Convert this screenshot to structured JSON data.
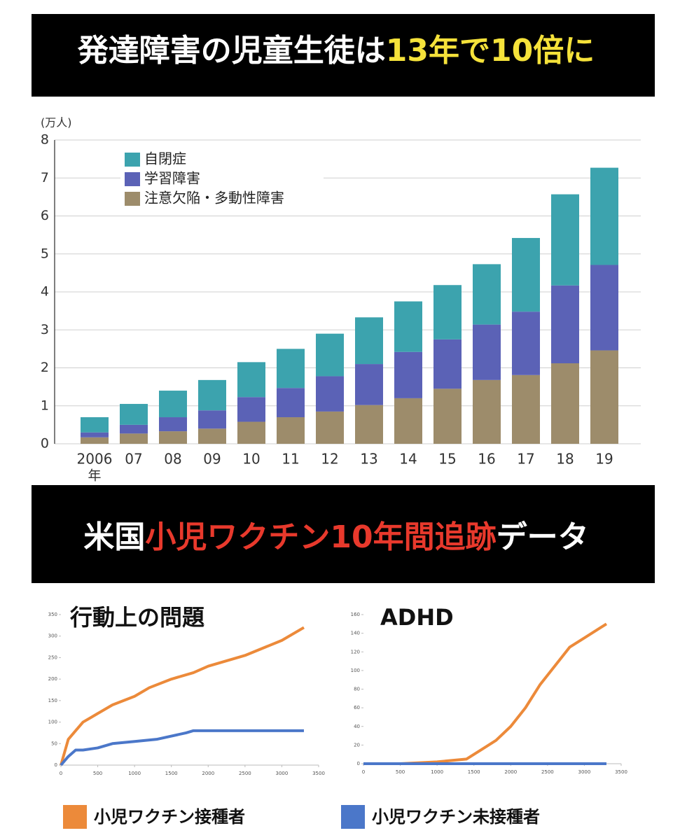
{
  "banners": [
    {
      "parts": [
        {
          "text": "発達障害の児童生徒は",
          "color": "#ffffff"
        },
        {
          "text": "13年で10倍に",
          "color": "#f5e23a"
        }
      ]
    },
    {
      "parts": [
        {
          "text": "米国",
          "color": "#ffffff"
        },
        {
          "text": "小児ワクチン10年間追跡",
          "color": "#e8392c"
        },
        {
          "text": "データ",
          "color": "#ffffff"
        }
      ]
    }
  ],
  "chart_data": [
    {
      "type": "stacked_bar",
      "y_label": "(万人)",
      "x_label": "年",
      "categories": [
        "2006",
        "07",
        "08",
        "09",
        "10",
        "11",
        "12",
        "13",
        "14",
        "15",
        "16",
        "17",
        "18",
        "19"
      ],
      "series": [
        {
          "name": "自閉症",
          "color": "#3ca3ae",
          "values": [
            0.4,
            0.55,
            0.7,
            0.8,
            0.92,
            1.03,
            1.12,
            1.23,
            1.33,
            1.43,
            1.59,
            1.94,
            2.4,
            2.56
          ]
        },
        {
          "name": "学習障害",
          "color": "#5b62b6",
          "values": [
            0.13,
            0.23,
            0.37,
            0.48,
            0.65,
            0.77,
            0.93,
            1.08,
            1.22,
            1.3,
            1.46,
            1.67,
            2.05,
            2.25
          ]
        },
        {
          "name": "注意欠陥・多動性障害",
          "color": "#9d8c6b",
          "values": [
            0.17,
            0.27,
            0.33,
            0.4,
            0.58,
            0.7,
            0.85,
            1.02,
            1.2,
            1.45,
            1.68,
            1.81,
            2.12,
            2.46
          ]
        }
      ],
      "ylim": [
        0,
        8
      ],
      "yticks": [
        0,
        1,
        2,
        3,
        4,
        5,
        6,
        7,
        8
      ],
      "grid": true
    },
    {
      "type": "line",
      "title": "行動上の問題",
      "series": [
        {
          "name": "小児ワクチン接種者",
          "color": "#ec8a3a",
          "x": [
            0,
            100,
            200,
            300,
            500,
            700,
            1000,
            1200,
            1500,
            1800,
            2000,
            2500,
            3000,
            3300
          ],
          "values": [
            0,
            60,
            80,
            100,
            120,
            140,
            160,
            180,
            200,
            215,
            230,
            255,
            290,
            320
          ]
        },
        {
          "name": "小児ワクチン未接種者",
          "color": "#4b77c9",
          "x": [
            0,
            100,
            200,
            300,
            500,
            700,
            1000,
            1300,
            1700,
            1800,
            2000,
            3300
          ],
          "values": [
            0,
            20,
            35,
            35,
            40,
            50,
            55,
            60,
            75,
            80,
            80,
            80
          ]
        }
      ],
      "xlim": [
        0,
        3500
      ],
      "xticks": [
        0,
        500,
        1000,
        1500,
        2000,
        2500,
        3000,
        3500
      ],
      "ylim": [
        0,
        350
      ],
      "yticks": [
        0,
        50,
        100,
        150,
        200,
        250,
        300,
        350
      ]
    },
    {
      "type": "line",
      "title": "ADHD",
      "series": [
        {
          "color": "#ec8a3a",
          "x": [
            0,
            500,
            1000,
            1400,
            1600,
            1800,
            2000,
            2200,
            2400,
            2600,
            2800,
            3000,
            3200,
            3300
          ],
          "values": [
            0,
            0,
            2,
            5,
            15,
            25,
            40,
            60,
            85,
            105,
            125,
            135,
            145,
            150
          ]
        },
        {
          "color": "#4b77c9",
          "x": [
            0,
            1000,
            2000,
            3300
          ],
          "values": [
            0,
            0,
            0,
            0
          ]
        }
      ],
      "xlim": [
        0,
        3500
      ],
      "xticks": [
        0,
        500,
        1000,
        1500,
        2000,
        2500,
        3000,
        3500
      ],
      "ylim": [
        0,
        160
      ],
      "yticks": [
        0,
        20,
        40,
        60,
        80,
        100,
        120,
        140,
        160
      ]
    }
  ]
}
